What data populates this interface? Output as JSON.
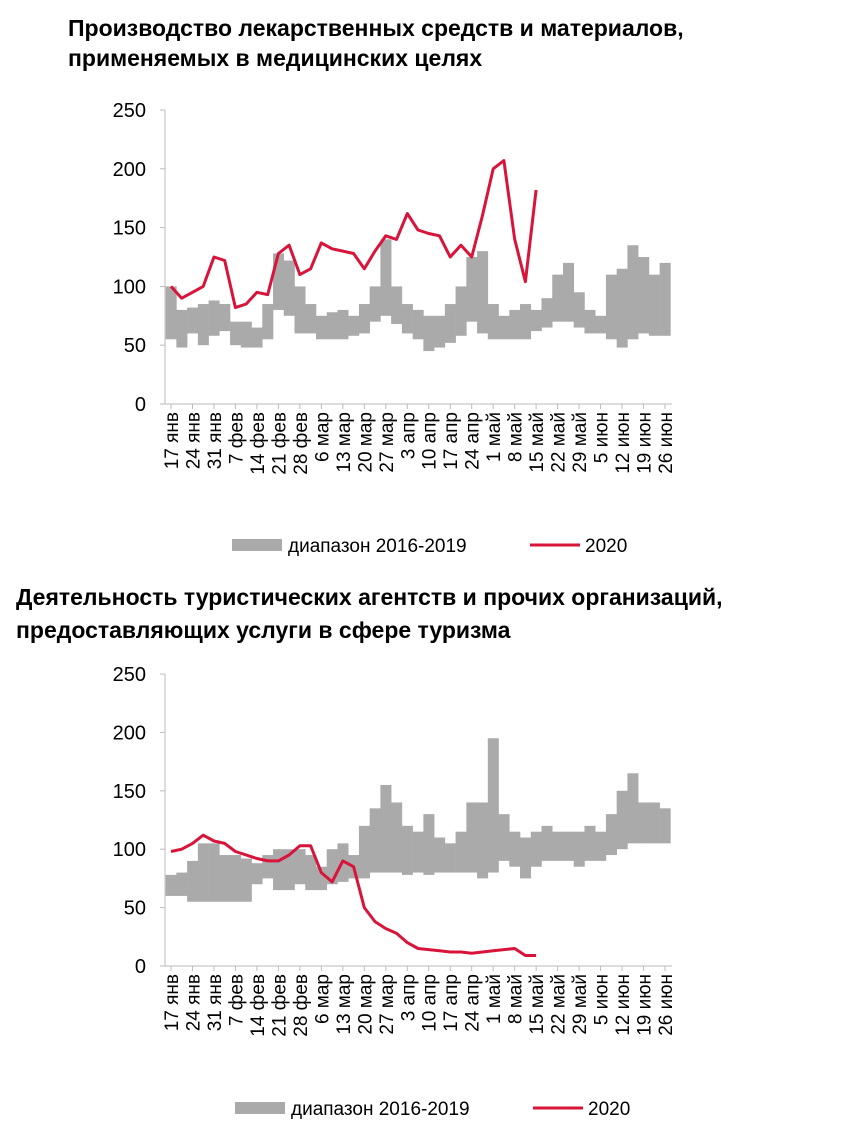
{
  "chart_data": [
    {
      "type": "line",
      "title": "Производство лекарственных средств и материалов,",
      "subtitle": "применяемых в медицинских целях",
      "categories": [
        "17 янв",
        null,
        "24 янв",
        null,
        "31 янв",
        null,
        "7 фев",
        null,
        "14 фев",
        null,
        "21 фев",
        null,
        "28 фев",
        null,
        "6 мар",
        null,
        "13 мар",
        null,
        "20 мар",
        null,
        "27 мар",
        null,
        "3 апр",
        null,
        "10 апр",
        null,
        "17 апр",
        null,
        "24 апр",
        null,
        "1 май",
        null,
        "8 май",
        null,
        "15 май",
        null,
        "22 май",
        null,
        "29 май",
        null,
        "5 июн",
        null,
        "12 июн",
        null,
        "19 июн",
        null,
        "26 июн"
      ],
      "ylim": [
        0,
        250
      ],
      "yticks": [
        0,
        50,
        100,
        150,
        200,
        250
      ],
      "series": [
        {
          "name": "диапазон 2016-2019",
          "color": "#aaaaaa",
          "low": [
            55,
            48,
            60,
            50,
            58,
            62,
            50,
            48,
            48,
            55,
            80,
            75,
            60,
            60,
            55,
            55,
            55,
            58,
            60,
            70,
            75,
            68,
            60,
            55,
            45,
            48,
            52,
            58,
            70,
            60,
            55,
            55,
            55,
            55,
            62,
            65,
            70,
            70,
            65,
            60,
            60,
            55,
            48,
            55,
            60,
            58,
            58
          ],
          "high": [
            100,
            80,
            82,
            85,
            88,
            85,
            70,
            70,
            65,
            85,
            128,
            122,
            100,
            85,
            75,
            78,
            80,
            75,
            85,
            100,
            140,
            100,
            85,
            80,
            75,
            75,
            85,
            100,
            125,
            130,
            85,
            75,
            80,
            85,
            80,
            90,
            110,
            120,
            95,
            80,
            75,
            110,
            115,
            135,
            125,
            110,
            120
          ]
        },
        {
          "name": "2020",
          "color": "#d9143a",
          "values": [
            100,
            90,
            95,
            100,
            125,
            122,
            82,
            85,
            95,
            93,
            128,
            135,
            110,
            115,
            137,
            132,
            130,
            128,
            115,
            130,
            143,
            140,
            162,
            148,
            145,
            143,
            125,
            135,
            125,
            160,
            200,
            207,
            140,
            104,
            182,
            null,
            null,
            null,
            null,
            null,
            null,
            null,
            null,
            null,
            null,
            null,
            null
          ]
        }
      ]
    },
    {
      "type": "line",
      "title": "Деятельность туристических агентств и прочих организаций,",
      "subtitle": "предоставляющих услуги в сфере туризма",
      "categories": [
        "17 янв",
        null,
        "24 янв",
        null,
        "31 янв",
        null,
        "7 фев",
        null,
        "14 фев",
        null,
        "21 фев",
        null,
        "28 фев",
        null,
        "6 мар",
        null,
        "13 мар",
        null,
        "20 мар",
        null,
        "27 мар",
        null,
        "3 апр",
        null,
        "10 апр",
        null,
        "17 апр",
        null,
        "24 апр",
        null,
        "1 май",
        null,
        "8 май",
        null,
        "15 май",
        null,
        "22 май",
        null,
        "29 май",
        null,
        "5 июн",
        null,
        "12 июн",
        null,
        "19 июн",
        null,
        "26 июн"
      ],
      "ylim": [
        0,
        250
      ],
      "yticks": [
        0,
        50,
        100,
        150,
        200,
        250
      ],
      "series": [
        {
          "name": "диапазон 2016-2019",
          "color": "#aaaaaa",
          "low": [
            60,
            60,
            55,
            55,
            55,
            55,
            55,
            55,
            70,
            75,
            65,
            65,
            70,
            65,
            65,
            70,
            72,
            75,
            75,
            80,
            80,
            80,
            78,
            80,
            78,
            80,
            80,
            80,
            80,
            75,
            80,
            90,
            85,
            75,
            85,
            90,
            90,
            90,
            85,
            90,
            90,
            95,
            100,
            105,
            105,
            105,
            105
          ],
          "high": [
            78,
            80,
            90,
            105,
            105,
            95,
            95,
            92,
            88,
            95,
            100,
            100,
            100,
            95,
            85,
            100,
            105,
            95,
            120,
            135,
            155,
            140,
            120,
            115,
            130,
            110,
            105,
            115,
            140,
            140,
            195,
            130,
            115,
            110,
            115,
            120,
            115,
            115,
            115,
            120,
            115,
            130,
            150,
            165,
            140,
            140,
            135
          ]
        },
        {
          "name": "2020",
          "color": "#d9143a",
          "values": [
            98,
            100,
            105,
            112,
            107,
            105,
            98,
            95,
            92,
            90,
            90,
            95,
            103,
            103,
            80,
            72,
            90,
            85,
            50,
            38,
            32,
            28,
            20,
            15,
            14,
            13,
            12,
            12,
            11,
            12,
            13,
            14,
            15,
            9,
            9,
            null,
            null,
            null,
            null,
            null,
            null,
            null,
            null,
            null,
            null,
            null,
            null
          ]
        }
      ]
    }
  ]
}
